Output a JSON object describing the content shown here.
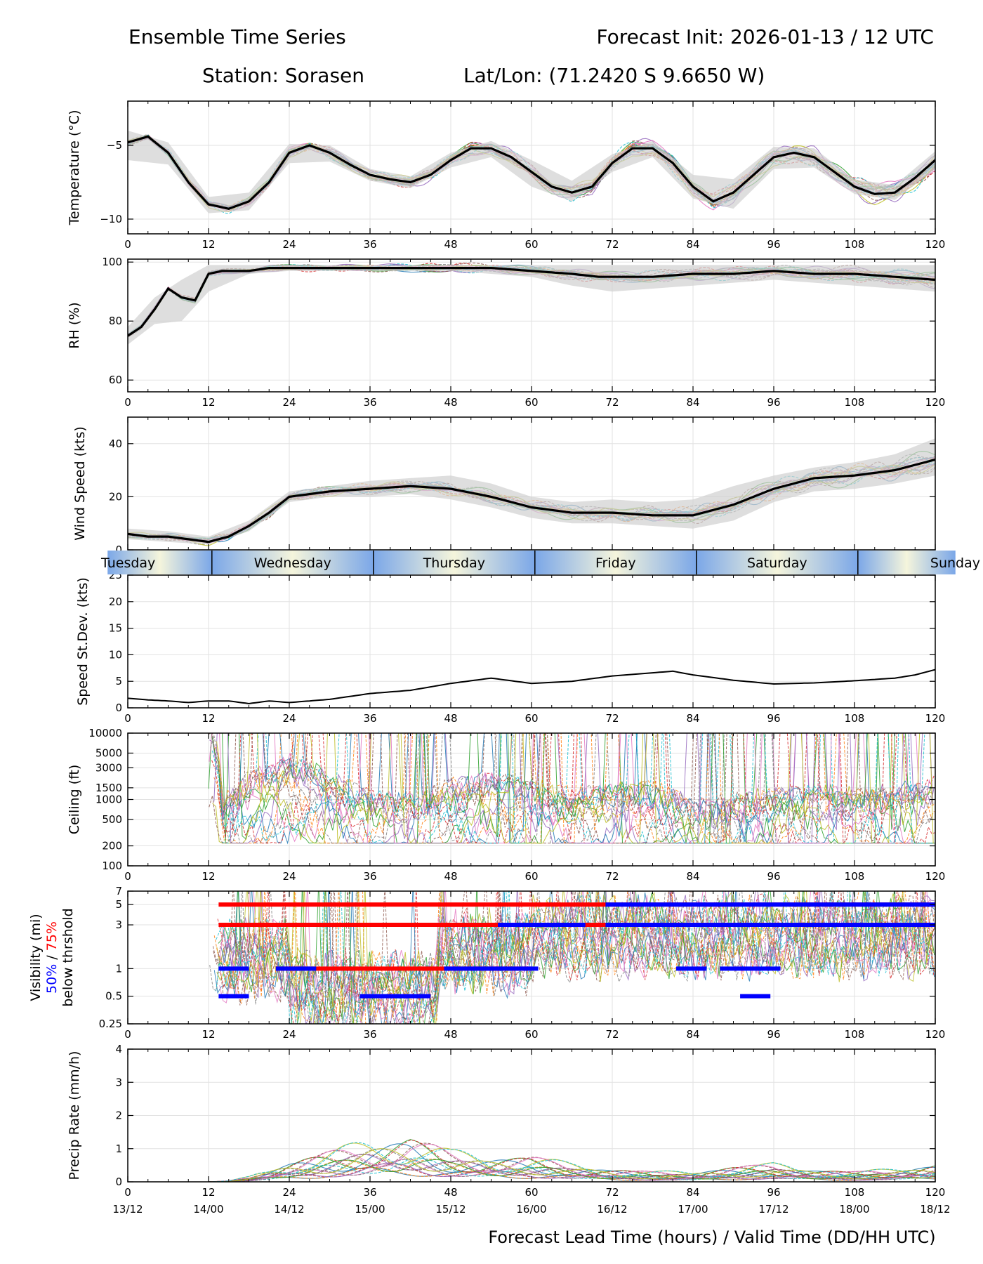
{
  "header": {
    "title_left": "Ensemble Time Series",
    "title_right": "Forecast Init: 2026-01-13 / 12 UTC",
    "station": "Station: Sorasen",
    "latlon": "Lat/Lon: (71.2420 S 9.6650 W)"
  },
  "xaxis": {
    "hours": [
      0,
      12,
      24,
      36,
      48,
      60,
      72,
      84,
      96,
      108,
      120
    ],
    "valid_times": [
      "13/12",
      "14/00",
      "14/12",
      "15/00",
      "15/12",
      "16/00",
      "16/12",
      "17/00",
      "17/12",
      "18/00",
      "18/12"
    ],
    "label": "Forecast Lead Time (hours) / Valid Time (DD/HH UTC)"
  },
  "day_strip": {
    "days": [
      "Tuesday",
      "Wednesday",
      "Thursday",
      "Friday",
      "Saturday",
      "Sunday"
    ],
    "boundaries_hours": [
      12.5,
      36.5,
      60.5,
      84.5,
      108.5
    ]
  },
  "colors": {
    "mean": "#000000",
    "spread": "#d0d0d0",
    "members": [
      "#1f77b4",
      "#ff7f0e",
      "#2ca02c",
      "#d62728",
      "#9467bd",
      "#8c564b",
      "#e377c2",
      "#7f7f7f",
      "#bcbd22",
      "#17becf"
    ],
    "vis_50": "#0000ff",
    "vis_75": "#ff0000",
    "day_light": "#f5f5dc",
    "day_dark": "#7ba7e8"
  },
  "chart_data": [
    {
      "type": "line",
      "name": "temperature",
      "ylabel": "Temperature (°C)",
      "xlim": [
        0,
        120
      ],
      "ylim": [
        -11,
        -2
      ],
      "yticks": [
        -5,
        -10
      ],
      "grid": true,
      "series": [
        {
          "name": "ensemble-mean",
          "x": [
            0,
            3,
            6,
            9,
            12,
            15,
            18,
            21,
            24,
            27,
            30,
            33,
            36,
            39,
            42,
            45,
            48,
            51,
            54,
            57,
            60,
            63,
            66,
            69,
            72,
            75,
            78,
            81,
            84,
            87,
            90,
            93,
            96,
            99,
            102,
            105,
            108,
            111,
            114,
            117,
            120
          ],
          "values": [
            -4.8,
            -4.4,
            -5.5,
            -7.5,
            -9.0,
            -9.3,
            -8.8,
            -7.5,
            -5.5,
            -5.0,
            -5.5,
            -6.3,
            -7.0,
            -7.3,
            -7.5,
            -7.0,
            -6.0,
            -5.2,
            -5.2,
            -5.8,
            -6.8,
            -7.8,
            -8.2,
            -7.8,
            -6.2,
            -5.2,
            -5.2,
            -6.2,
            -7.8,
            -8.8,
            -8.2,
            -7.0,
            -5.8,
            -5.5,
            -5.8,
            -6.8,
            -7.8,
            -8.3,
            -8.2,
            -7.2,
            -6.0
          ]
        }
      ],
      "spread": {
        "x": [
          0,
          6,
          12,
          18,
          24,
          30,
          36,
          42,
          48,
          54,
          60,
          66,
          72,
          78,
          84,
          90,
          96,
          102,
          108,
          114,
          120
        ],
        "lower": [
          -6.0,
          -6.3,
          -9.6,
          -9.4,
          -6.2,
          -6.1,
          -7.4,
          -7.9,
          -6.5,
          -5.8,
          -7.8,
          -8.8,
          -6.8,
          -5.8,
          -8.6,
          -9.3,
          -6.6,
          -6.5,
          -8.3,
          -8.7,
          -6.6
        ],
        "upper": [
          -4.0,
          -4.8,
          -8.5,
          -8.2,
          -4.9,
          -5.0,
          -6.6,
          -7.1,
          -5.5,
          -4.7,
          -6.0,
          -7.4,
          -5.6,
          -4.7,
          -7.0,
          -7.3,
          -5.1,
          -5.2,
          -7.3,
          -7.7,
          -5.4
        ]
      }
    },
    {
      "type": "line",
      "name": "relative-humidity",
      "ylabel": "RH (%)",
      "xlim": [
        0,
        120
      ],
      "ylim": [
        56,
        101
      ],
      "yticks": [
        60,
        80,
        100
      ],
      "grid": true,
      "series": [
        {
          "name": "ensemble-mean",
          "x": [
            0,
            2,
            4,
            6,
            8,
            10,
            12,
            14,
            16,
            18,
            21,
            24,
            30,
            36,
            42,
            48,
            54,
            60,
            66,
            70,
            72,
            78,
            84,
            90,
            96,
            102,
            108,
            114,
            120
          ],
          "values": [
            75,
            78,
            84,
            91,
            88,
            87,
            96,
            97,
            97,
            97,
            98,
            98,
            98,
            98,
            98,
            98,
            98,
            97,
            96,
            95,
            95,
            95,
            96,
            96,
            97,
            96,
            96,
            95,
            94
          ]
        }
      ],
      "spread": {
        "x": [
          0,
          4,
          8,
          12,
          18,
          24,
          36,
          48,
          60,
          66,
          72,
          78,
          84,
          90,
          96,
          102,
          108,
          114,
          120
        ],
        "lower": [
          72,
          79,
          80,
          90,
          96,
          97,
          97,
          97,
          95,
          92,
          90,
          91,
          92,
          93,
          94,
          93,
          92,
          91,
          90
        ],
        "upper": [
          78,
          88,
          94,
          99,
          99,
          99,
          99,
          99,
          99,
          99,
          99,
          99,
          99,
          99,
          99,
          99,
          99,
          99,
          99
        ]
      }
    },
    {
      "type": "line",
      "name": "wind-speed",
      "ylabel": "Wind Speed (kts)",
      "xlim": [
        0,
        120
      ],
      "ylim": [
        0,
        50
      ],
      "yticks": [
        0,
        20,
        40
      ],
      "grid": true,
      "series": [
        {
          "name": "ensemble-mean",
          "x": [
            0,
            3,
            6,
            9,
            12,
            15,
            18,
            21,
            24,
            30,
            36,
            42,
            48,
            54,
            60,
            66,
            72,
            78,
            84,
            90,
            96,
            102,
            108,
            114,
            120
          ],
          "values": [
            6,
            5,
            5,
            4,
            3,
            5,
            9,
            14,
            20,
            22,
            23,
            24,
            23,
            20,
            16,
            14,
            14,
            13,
            13,
            17,
            23,
            27,
            28,
            30,
            34
          ]
        }
      ],
      "spread": {
        "x": [
          0,
          6,
          12,
          18,
          24,
          30,
          36,
          42,
          48,
          54,
          60,
          66,
          72,
          78,
          84,
          90,
          96,
          102,
          108,
          114,
          120
        ],
        "lower": [
          4,
          3,
          2,
          7,
          18,
          20,
          20,
          21,
          19,
          16,
          12,
          10,
          10,
          9,
          8,
          11,
          18,
          22,
          23,
          25,
          28
        ],
        "upper": [
          8,
          7,
          5,
          11,
          22,
          24,
          26,
          27,
          28,
          25,
          20,
          18,
          19,
          18,
          19,
          24,
          28,
          31,
          33,
          36,
          42
        ]
      }
    },
    {
      "type": "line",
      "name": "speed-stdev",
      "ylabel": "Speed St.Dev. (kts)",
      "xlim": [
        0,
        120
      ],
      "ylim": [
        0,
        25
      ],
      "yticks": [
        0,
        5,
        10,
        15,
        20,
        25
      ],
      "grid": true,
      "series": [
        {
          "name": "stdev",
          "x": [
            0,
            3,
            6,
            9,
            12,
            15,
            18,
            21,
            24,
            30,
            36,
            42,
            48,
            54,
            60,
            66,
            72,
            78,
            81,
            84,
            90,
            96,
            102,
            108,
            114,
            117,
            120
          ],
          "values": [
            1.8,
            1.5,
            1.3,
            1.0,
            1.3,
            1.3,
            0.8,
            1.3,
            1.0,
            1.6,
            2.7,
            3.3,
            4.6,
            5.6,
            4.6,
            5.0,
            6.0,
            6.6,
            6.9,
            6.2,
            5.2,
            4.5,
            4.7,
            5.1,
            5.6,
            6.2,
            7.2
          ]
        }
      ]
    },
    {
      "type": "line",
      "name": "ceiling",
      "ylabel": "Ceiling (ft)",
      "yscale": "log",
      "xlim": [
        0,
        120
      ],
      "ylim": [
        100,
        10000
      ],
      "yticks": [
        100,
        200,
        500,
        1000,
        1500,
        3000,
        5000,
        10000
      ],
      "grid": true,
      "series": [
        {
          "name": "typical-member-ceiling",
          "x": [
            12,
            14,
            18,
            24,
            30,
            36,
            42,
            48,
            54,
            60,
            66,
            72,
            78,
            84,
            90,
            96,
            102,
            108,
            114,
            120
          ],
          "values": [
            10000,
            600,
            1500,
            3000,
            1500,
            800,
            700,
            1200,
            1500,
            1200,
            900,
            1000,
            1200,
            600,
            700,
            900,
            1000,
            900,
            1000,
            1300
          ]
        }
      ]
    },
    {
      "type": "line",
      "name": "visibility",
      "ylabel": "Visibility (mi)",
      "ylabel_pct50": "50%",
      "ylabel_sep": " / ",
      "ylabel_pct75": "75%",
      "ylabel_sub": "below thrshold",
      "yscale": "log",
      "xlim": [
        0,
        120
      ],
      "ylim": [
        0.25,
        7
      ],
      "yticks": [
        0.25,
        0.5,
        1,
        3,
        5,
        7
      ],
      "grid": true,
      "threshold_bars_75pct": [
        {
          "threshold": 5,
          "start": 13.5,
          "end": 120
        },
        {
          "threshold": 3,
          "start": 13.5,
          "end": 120
        },
        {
          "threshold": 1,
          "start": 22,
          "end": 60
        }
      ],
      "threshold_bars_50pct": [
        {
          "threshold": 5,
          "start": 71,
          "end": 120
        },
        {
          "threshold": 3,
          "start": 55,
          "end": 68
        },
        {
          "threshold": 3,
          "start": 71,
          "end": 120
        },
        {
          "threshold": 1,
          "start": 13.5,
          "end": 18
        },
        {
          "threshold": 1,
          "start": 22,
          "end": 28
        },
        {
          "threshold": 1,
          "start": 47,
          "end": 61
        },
        {
          "threshold": 1,
          "start": 81.5,
          "end": 86
        },
        {
          "threshold": 1,
          "start": 88,
          "end": 97
        },
        {
          "threshold": 0.5,
          "start": 13.5,
          "end": 18
        },
        {
          "threshold": 0.5,
          "start": 34.5,
          "end": 45
        },
        {
          "threshold": 0.5,
          "start": 91,
          "end": 95.5
        }
      ]
    },
    {
      "type": "line",
      "name": "precip-rate",
      "ylabel": "Precip Rate (mm/h)",
      "xlim": [
        0,
        120
      ],
      "ylim": [
        0,
        4
      ],
      "yticks": [
        0,
        1,
        2,
        3,
        4
      ],
      "grid": true,
      "series": [
        {
          "name": "typical-member-precip",
          "x": [
            0,
            12,
            15,
            18,
            21,
            24,
            30,
            36,
            42,
            48,
            54,
            60,
            66,
            72,
            78,
            84,
            90,
            96,
            102,
            108,
            114,
            120
          ],
          "values": [
            0,
            0,
            0.02,
            0.1,
            0.25,
            0.4,
            0.6,
            0.8,
            0.9,
            0.6,
            0.5,
            0.5,
            0.35,
            0.25,
            0.2,
            0.2,
            0.3,
            0.35,
            0.25,
            0.2,
            0.25,
            0.35
          ]
        }
      ]
    }
  ]
}
